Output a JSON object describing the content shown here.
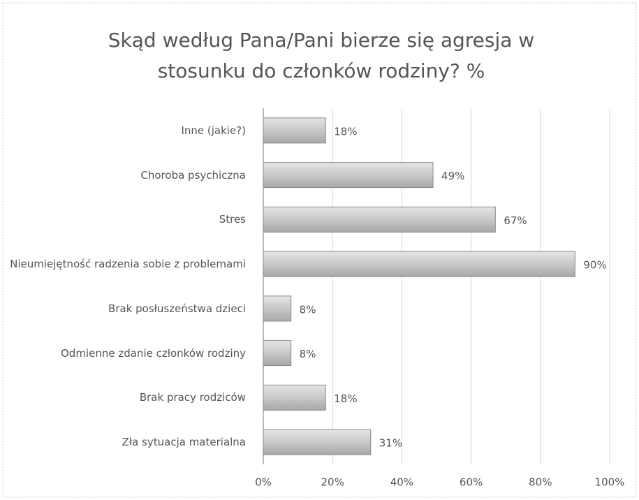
{
  "chart_data": {
    "type": "bar",
    "orientation": "horizontal",
    "title": "Skąd według Pana/Pani bierze się agresja w stosunku do członków rodziny? %",
    "categories": [
      "Inne (jakie?)",
      "Choroba psychiczna",
      "Stres",
      "Nieumiejętność radzenia sobie z problemami",
      "Brak posłuszeństwa dzieci",
      "Odmienne zdanie członków rodziny",
      "Brak pracy rodziców",
      "Zła sytuacja materialna"
    ],
    "values": [
      18,
      49,
      67,
      90,
      8,
      8,
      18,
      31
    ],
    "value_labels": [
      "18%",
      "49%",
      "67%",
      "90%",
      "8%",
      "8%",
      "18%",
      "31%"
    ],
    "color": "#c8c8c8",
    "xlim": [
      0,
      100
    ],
    "xticks": [
      {
        "value": 0,
        "label": "0%"
      },
      {
        "value": 20,
        "label": "20%"
      },
      {
        "value": 40,
        "label": "40%"
      },
      {
        "value": 60,
        "label": "60%"
      },
      {
        "value": 80,
        "label": "80%"
      },
      {
        "value": 100,
        "label": "100%"
      }
    ],
    "grid": true
  }
}
